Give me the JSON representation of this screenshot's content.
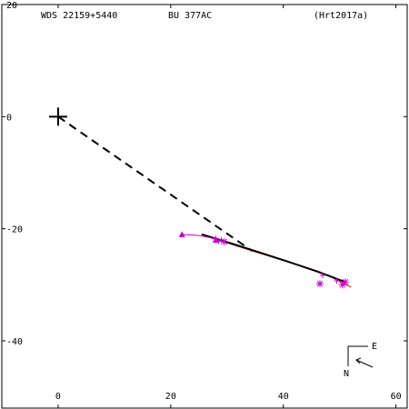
{
  "header": {
    "wds": "WDS 22159+5440",
    "discoverer": "BU  377AC",
    "reference": "(Hrt2017a)"
  },
  "compass": {
    "east": "E",
    "north": "N"
  },
  "chart_data": {
    "type": "scatter",
    "title": "",
    "xlabel": "",
    "ylabel": "",
    "xlim": [
      -10,
      62
    ],
    "ylim": [
      -52,
      20
    ],
    "x_ticks": [
      0,
      20,
      40,
      60
    ],
    "y_ticks": [
      20,
      0,
      -20,
      -40
    ],
    "x_tick_labels": [
      "0",
      "20",
      "40",
      "60"
    ],
    "y_tick_labels": [
      "20",
      "0",
      "-20",
      "-40"
    ],
    "primary": {
      "x": 0,
      "y": 0
    },
    "dashed_line": [
      [
        0,
        0
      ],
      [
        34.5,
        -24
      ]
    ],
    "orbit_black": [
      [
        25.5,
        -21
      ],
      [
        32,
        -23
      ],
      [
        40,
        -25.6
      ],
      [
        46,
        -27.6
      ],
      [
        51,
        -29.5
      ]
    ],
    "orbit_red": [
      [
        26.5,
        -21.4
      ],
      [
        34,
        -23.8
      ],
      [
        42,
        -26.3
      ],
      [
        48,
        -28.4
      ],
      [
        52,
        -30.4
      ]
    ],
    "early_track": [
      [
        22,
        -21
      ],
      [
        25,
        -21.2
      ],
      [
        27,
        -21.6
      ],
      [
        28,
        -21.9
      ]
    ],
    "triangles": [
      [
        22,
        -21
      ],
      [
        28,
        -22
      ]
    ],
    "plus_points": [
      [
        28,
        -21.7
      ],
      [
        29,
        -22
      ],
      [
        28.5,
        -22.2
      ],
      [
        47,
        -28.3
      ],
      [
        49.5,
        -29.3
      ]
    ],
    "asterisks": [
      [
        29.5,
        -22.3
      ],
      [
        46.5,
        -29.8
      ],
      [
        50.5,
        -30
      ],
      [
        51,
        -29.5
      ]
    ],
    "colors": {
      "axes": "#000000",
      "orbit": "#000000",
      "alt_orbit": "#ff0000",
      "observations": "#cc00cc"
    }
  }
}
